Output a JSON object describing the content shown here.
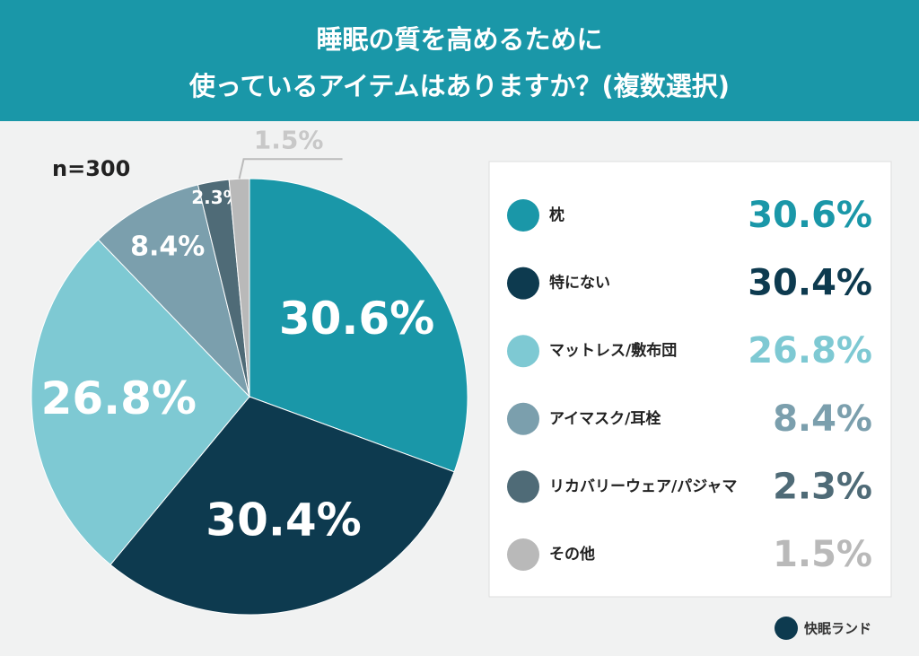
{
  "chart_data": {
    "type": "pie",
    "title": [
      "睡眠の質を高めるために",
      "使っているアイテムはありますか？(複数選択)"
    ],
    "subtitle": "n=300",
    "categories": [
      "枕",
      "特にない",
      "マットレス/敷布団",
      "アイマスク/耳栓",
      "リカバリーウェア/パジャマ",
      "その他"
    ],
    "values": [
      30.6,
      30.4,
      26.8,
      8.4,
      2.3,
      1.5
    ],
    "value_labels": [
      "30.6%",
      "30.4%",
      "26.8%",
      "8.4%",
      "2.3%",
      "1.5%"
    ],
    "colors": [
      "#1a97a8",
      "#0d3a4f",
      "#7ec9d3",
      "#7b9fad",
      "#4f6b77",
      "#b9b9b9"
    ],
    "brand": "快眠ランド"
  }
}
